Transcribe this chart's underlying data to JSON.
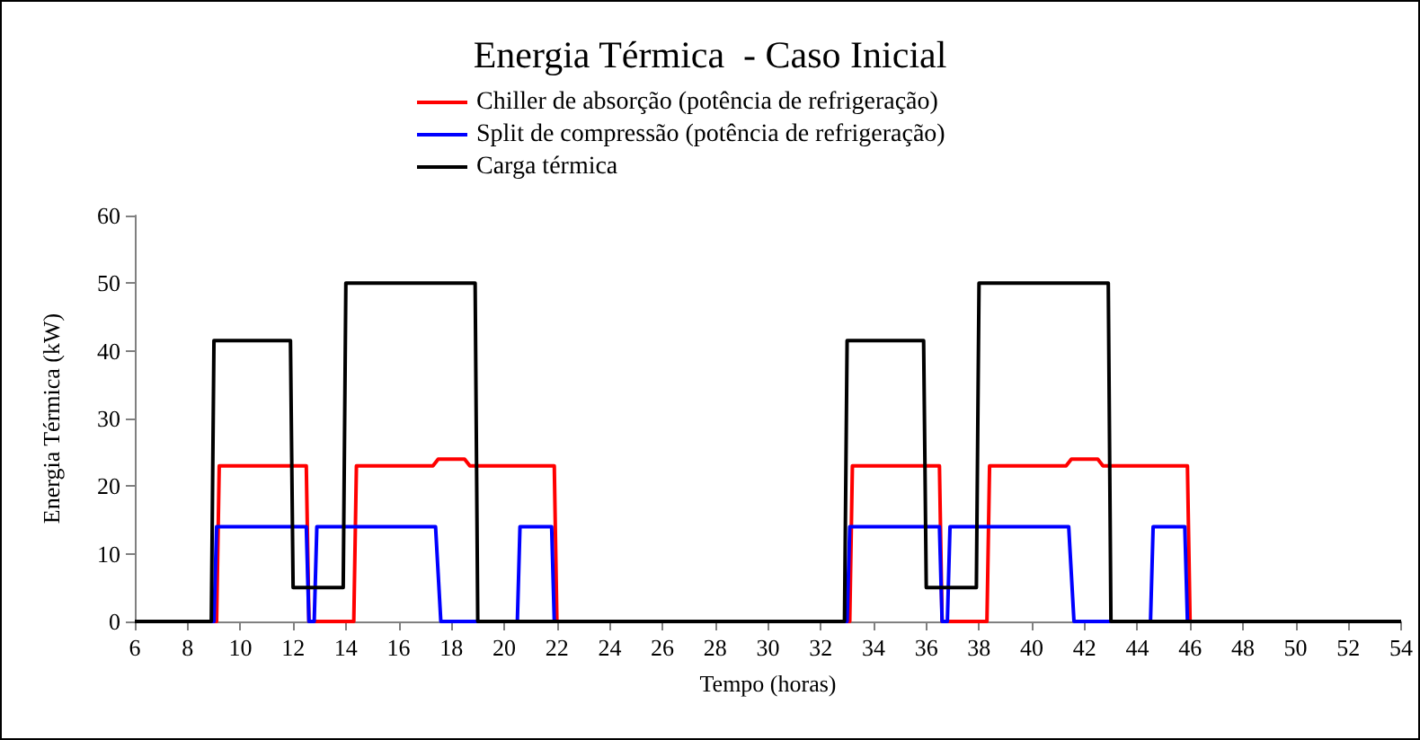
{
  "chart_data": {
    "type": "line",
    "title": "Energia Térmica  - Caso Inicial",
    "xlabel": "Tempo (horas)",
    "ylabel": "Energia Térmica (kW)",
    "xlim": [
      6,
      54
    ],
    "xticks": [
      6,
      8,
      10,
      12,
      14,
      16,
      18,
      20,
      22,
      24,
      26,
      28,
      30,
      32,
      34,
      36,
      38,
      40,
      42,
      44,
      46,
      48,
      50,
      52,
      54
    ],
    "ylim": [
      0,
      60
    ],
    "yticks": [
      0,
      10,
      20,
      30,
      40,
      50,
      60
    ],
    "grid": false,
    "legend": "top",
    "marker": "none",
    "line_style": "solid",
    "series": [
      {
        "name": "Chiller de absorção (potência de refrigeração)",
        "color": "#ff0000",
        "x": [
          6,
          9.1,
          9.2,
          12.5,
          12.6,
          14.3,
          14.4,
          17.3,
          17.5,
          18.5,
          18.7,
          21.9,
          22,
          33.1,
          33.2,
          36.5,
          36.6,
          38.3,
          38.4,
          41.3,
          41.5,
          42.5,
          42.7,
          45.9,
          46,
          54
        ],
        "values": [
          0,
          0,
          23,
          23,
          0,
          0,
          23,
          23,
          24,
          24,
          23,
          23,
          0,
          0,
          23,
          23,
          0,
          0,
          23,
          23,
          24,
          24,
          23,
          23,
          0,
          0
        ]
      },
      {
        "name": "Split de compressão (potência de refrigeração)",
        "color": "#0000ff",
        "x": [
          6,
          9,
          9.1,
          12.5,
          12.6,
          12.8,
          12.9,
          17.4,
          17.6,
          20.5,
          20.6,
          21.8,
          21.9,
          33,
          33.1,
          36.5,
          36.6,
          36.8,
          36.9,
          41.4,
          41.6,
          44.5,
          44.6,
          45.8,
          45.9,
          54
        ],
        "values": [
          0,
          0,
          14,
          14,
          0,
          0,
          14,
          14,
          0,
          0,
          14,
          14,
          0,
          0,
          14,
          14,
          0,
          0,
          14,
          14,
          0,
          0,
          14,
          14,
          0,
          0
        ]
      },
      {
        "name": "Carga térmica",
        "color": "#000000",
        "x": [
          6,
          8.9,
          9,
          11.9,
          12,
          13.9,
          14,
          18.9,
          19,
          32.9,
          33,
          35.9,
          36,
          37.9,
          38,
          42.9,
          43,
          54
        ],
        "values": [
          0,
          0,
          41.5,
          41.5,
          5,
          5,
          50,
          50,
          0,
          0,
          41.5,
          41.5,
          5,
          5,
          50,
          50,
          0,
          0
        ]
      }
    ]
  }
}
